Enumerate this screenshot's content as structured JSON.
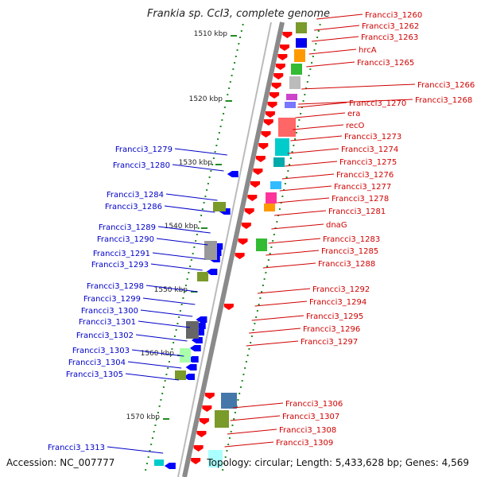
{
  "header": {
    "title": "Frankia sp. CcI3, complete genome"
  },
  "footer": {
    "accession": "Accession: NC_007777",
    "summary": "Topology: circular; Length: 5,433,628 bp; Genes: 4,569"
  },
  "colors": {
    "forward_label": "#d00000",
    "reverse_label": "#0000c8",
    "forward_gene": "#ff0000",
    "reverse_gene": "#0000ff",
    "backbone": "#999999",
    "tick": "#228b22"
  },
  "scale": {
    "ticks": [
      {
        "label": "1510 kbp"
      },
      {
        "label": "1520 kbp"
      },
      {
        "label": "1530 kbp"
      },
      {
        "label": "1540 kbp"
      },
      {
        "label": "1550 kbp"
      },
      {
        "label": "1560 kbp"
      },
      {
        "label": "1570 kbp"
      }
    ]
  },
  "right_labels": [
    "Francci3_1260",
    "Francci3_1262",
    "Francci3_1263",
    "hrcA",
    "Francci3_1265",
    "Francci3_1266",
    "Francci3_1268",
    "Francci3_1270",
    "era",
    "recO",
    "Francci3_1273",
    "Francci3_1274",
    "Francci3_1275",
    "Francci3_1276",
    "Francci3_1277",
    "Francci3_1278",
    "Francci3_1281",
    "dnaG",
    "Francci3_1283",
    "Francci3_1285",
    "Francci3_1288",
    "Francci3_1292",
    "Francci3_1294",
    "Francci3_1295",
    "Francci3_1296",
    "Francci3_1297",
    "Francci3_1306",
    "Francci3_1307",
    "Francci3_1308",
    "Francci3_1309"
  ],
  "left_labels": [
    "Francci3_1279",
    "Francci3_1280",
    "Francci3_1284",
    "Francci3_1286",
    "Francci3_1289",
    "Francci3_1290",
    "Francci3_1291",
    "Francci3_1293",
    "Francci3_1298",
    "Francci3_1299",
    "Francci3_1300",
    "Francci3_1301",
    "Francci3_1302",
    "Francci3_1303",
    "Francci3_1304",
    "Francci3_1305",
    "Francci3_1313"
  ]
}
